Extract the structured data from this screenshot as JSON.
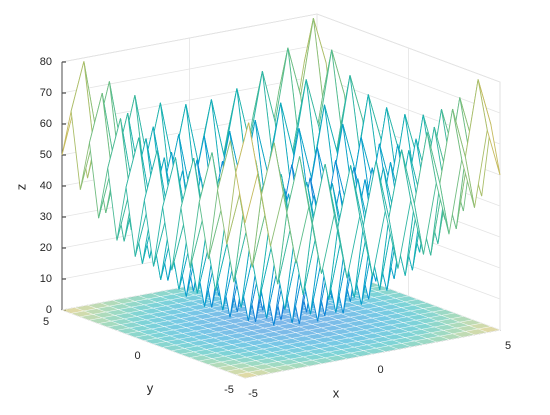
{
  "chart_data": {
    "type": "surface",
    "colormap": "parula",
    "grid": true,
    "xlabel": "x",
    "ylabel": "y",
    "zlabel": "z",
    "x": [
      -5,
      -4.5,
      -4,
      -3.5,
      -3,
      -2.5,
      -2,
      -1.5,
      -1,
      -0.5,
      0,
      0.5,
      1,
      1.5,
      2,
      2.5,
      3,
      3.5,
      4,
      4.5,
      5
    ],
    "y": [
      -5,
      -4.5,
      -4,
      -3.5,
      -3,
      -2.5,
      -2,
      -1.5,
      -1,
      -0.5,
      0,
      0.5,
      1,
      1.5,
      2,
      2.5,
      3,
      3.5,
      4,
      4.5,
      5
    ],
    "z": [
      [
        50,
        65.25,
        41,
        57.25,
        34,
        51.25,
        29,
        47.25,
        26,
        45.25,
        25,
        45.25,
        26,
        47.25,
        29,
        51.25,
        34,
        57.25,
        41,
        65.25,
        50
      ],
      [
        65.25,
        80.5,
        56.25,
        72.5,
        49.25,
        66.5,
        44.25,
        62.5,
        41.25,
        60.5,
        40.25,
        60.5,
        41.25,
        62.5,
        44.25,
        66.5,
        49.25,
        72.5,
        56.25,
        80.5,
        65.25
      ],
      [
        41,
        56.25,
        32,
        48.25,
        25,
        42.25,
        20,
        38.25,
        17,
        36.25,
        16,
        36.25,
        17,
        38.25,
        20,
        42.25,
        25,
        48.25,
        32,
        56.25,
        41
      ],
      [
        57.25,
        72.5,
        48.25,
        64.5,
        41.25,
        58.5,
        36.25,
        54.5,
        33.25,
        52.5,
        32.25,
        52.5,
        33.25,
        54.5,
        36.25,
        58.5,
        41.25,
        64.5,
        48.25,
        72.5,
        57.25
      ],
      [
        34,
        49.25,
        25,
        41.25,
        18,
        35.25,
        13,
        31.25,
        10,
        29.25,
        9,
        29.25,
        10,
        31.25,
        13,
        35.25,
        18,
        41.25,
        25,
        49.25,
        34
      ],
      [
        51.25,
        66.5,
        42.25,
        58.5,
        35.25,
        52.5,
        30.25,
        48.5,
        27.25,
        46.5,
        26.25,
        46.5,
        27.25,
        48.5,
        30.25,
        52.5,
        35.25,
        58.5,
        42.25,
        66.5,
        51.25
      ],
      [
        29,
        44.25,
        20,
        36.25,
        13,
        30.25,
        8,
        26.25,
        5,
        24.25,
        4,
        24.25,
        5,
        26.25,
        8,
        30.25,
        13,
        36.25,
        20,
        44.25,
        29
      ],
      [
        47.25,
        62.5,
        38.25,
        54.5,
        31.25,
        48.5,
        26.25,
        44.5,
        23.25,
        42.5,
        22.25,
        42.5,
        23.25,
        44.5,
        26.25,
        48.5,
        31.25,
        54.5,
        38.25,
        62.5,
        47.25
      ],
      [
        26,
        41.25,
        17,
        33.25,
        10,
        27.25,
        5,
        23.25,
        2,
        21.25,
        1,
        21.25,
        2,
        23.25,
        5,
        27.25,
        10,
        33.25,
        17,
        41.25,
        26
      ],
      [
        45.25,
        60.5,
        36.25,
        52.5,
        29.25,
        46.5,
        24.25,
        42.5,
        21.25,
        40.5,
        20.25,
        40.5,
        21.25,
        42.5,
        24.25,
        46.5,
        29.25,
        52.5,
        36.25,
        60.5,
        45.25
      ],
      [
        25,
        40.25,
        16,
        32.25,
        9,
        26.25,
        4,
        22.25,
        1,
        20.25,
        0,
        20.25,
        1,
        22.25,
        4,
        26.25,
        9,
        32.25,
        16,
        40.25,
        25
      ],
      [
        45.25,
        60.5,
        36.25,
        52.5,
        29.25,
        46.5,
        24.25,
        42.5,
        21.25,
        40.5,
        20.25,
        40.5,
        21.25,
        42.5,
        24.25,
        46.5,
        29.25,
        52.5,
        36.25,
        60.5,
        45.25
      ],
      [
        26,
        41.25,
        17,
        33.25,
        10,
        27.25,
        5,
        23.25,
        2,
        21.25,
        1,
        21.25,
        2,
        23.25,
        5,
        27.25,
        10,
        33.25,
        17,
        41.25,
        26
      ],
      [
        47.25,
        62.5,
        38.25,
        54.5,
        31.25,
        48.5,
        26.25,
        44.5,
        23.25,
        42.5,
        22.25,
        42.5,
        23.25,
        44.5,
        26.25,
        48.5,
        31.25,
        54.5,
        38.25,
        62.5,
        47.25
      ],
      [
        29,
        44.25,
        20,
        36.25,
        13,
        30.25,
        8,
        26.25,
        5,
        24.25,
        4,
        24.25,
        5,
        26.25,
        8,
        30.25,
        13,
        36.25,
        20,
        44.25,
        29
      ],
      [
        51.25,
        66.5,
        42.25,
        58.5,
        35.25,
        52.5,
        30.25,
        48.5,
        27.25,
        46.5,
        26.25,
        46.5,
        27.25,
        48.5,
        30.25,
        52.5,
        35.25,
        58.5,
        42.25,
        66.5,
        51.25
      ],
      [
        34,
        49.25,
        25,
        41.25,
        18,
        35.25,
        13,
        31.25,
        10,
        29.25,
        9,
        29.25,
        10,
        31.25,
        13,
        35.25,
        18,
        41.25,
        25,
        49.25,
        34
      ],
      [
        57.25,
        72.5,
        48.25,
        64.5,
        41.25,
        58.5,
        36.25,
        54.5,
        33.25,
        52.5,
        32.25,
        52.5,
        33.25,
        54.5,
        36.25,
        58.5,
        41.25,
        64.5,
        48.25,
        72.5,
        57.25
      ],
      [
        41,
        56.25,
        32,
        48.25,
        25,
        42.25,
        20,
        38.25,
        17,
        36.25,
        16,
        36.25,
        17,
        38.25,
        20,
        42.25,
        25,
        48.25,
        32,
        56.25,
        41
      ],
      [
        65.25,
        80.5,
        56.25,
        72.5,
        49.25,
        66.5,
        44.25,
        62.5,
        41.25,
        60.5,
        40.25,
        60.5,
        41.25,
        62.5,
        44.25,
        66.5,
        49.25,
        72.5,
        56.25,
        80.5,
        65.25
      ],
      [
        50,
        65.25,
        41,
        57.25,
        34,
        51.25,
        29,
        47.25,
        26,
        45.25,
        25,
        45.25,
        26,
        47.25,
        29,
        51.25,
        34,
        57.25,
        41,
        65.25,
        50
      ]
    ],
    "xlim": [
      -5,
      5
    ],
    "ylim": [
      -5,
      5
    ],
    "zlim": [
      0,
      80
    ],
    "xticks": [
      -5,
      0,
      5
    ],
    "yticks": [
      -5,
      0,
      5
    ],
    "zticks": [
      0,
      10,
      20,
      30,
      40,
      50,
      60,
      70,
      80
    ]
  }
}
